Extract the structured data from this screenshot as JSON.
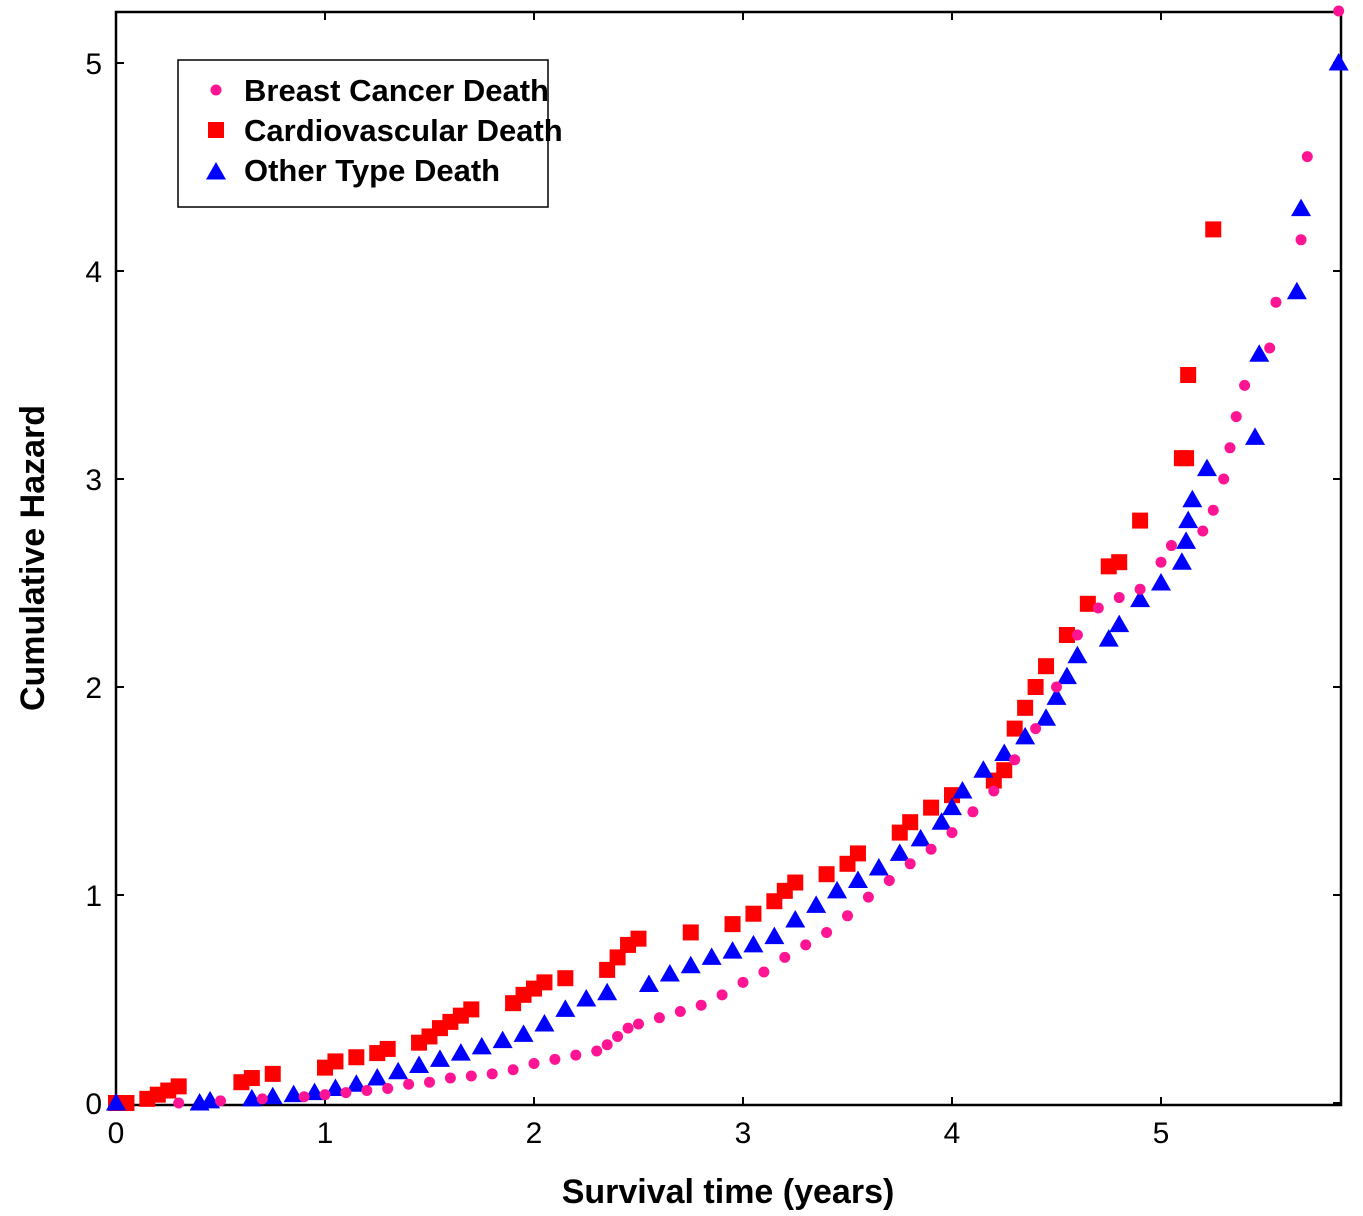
{
  "chart_data": {
    "type": "scatter",
    "title": "",
    "xlabel": "Survival time (years)",
    "ylabel": "Cumulative Hazard",
    "xlim": [
      0,
      5.85
    ],
    "ylim": [
      0,
      5.25
    ],
    "xticks": [
      0,
      1,
      2,
      3,
      4,
      5
    ],
    "yticks": [
      0,
      1,
      2,
      3,
      4,
      5
    ],
    "xtick_labels": [
      "0",
      "1",
      "2",
      "3",
      "4",
      "5"
    ],
    "ytick_labels": [
      "0",
      "1",
      "2",
      "3",
      "4",
      "5"
    ],
    "grid": false,
    "legend_position": "top-left",
    "series": [
      {
        "name": "Breast Cancer Death",
        "marker": "circle",
        "color": "#ff1493",
        "points": [
          [
            0.3,
            0.0
          ],
          [
            0.5,
            0.01
          ],
          [
            0.7,
            0.02
          ],
          [
            0.9,
            0.03
          ],
          [
            1.0,
            0.04
          ],
          [
            1.1,
            0.05
          ],
          [
            1.2,
            0.06
          ],
          [
            1.3,
            0.07
          ],
          [
            1.4,
            0.09
          ],
          [
            1.5,
            0.1
          ],
          [
            1.6,
            0.12
          ],
          [
            1.7,
            0.13
          ],
          [
            1.8,
            0.14
          ],
          [
            1.9,
            0.16
          ],
          [
            2.0,
            0.19
          ],
          [
            2.1,
            0.21
          ],
          [
            2.2,
            0.23
          ],
          [
            2.3,
            0.25
          ],
          [
            2.35,
            0.28
          ],
          [
            2.4,
            0.32
          ],
          [
            2.45,
            0.36
          ],
          [
            2.5,
            0.38
          ],
          [
            2.6,
            0.41
          ],
          [
            2.7,
            0.44
          ],
          [
            2.8,
            0.47
          ],
          [
            2.9,
            0.52
          ],
          [
            3.0,
            0.58
          ],
          [
            3.1,
            0.63
          ],
          [
            3.2,
            0.7
          ],
          [
            3.3,
            0.76
          ],
          [
            3.4,
            0.82
          ],
          [
            3.5,
            0.9
          ],
          [
            3.6,
            0.99
          ],
          [
            3.7,
            1.07
          ],
          [
            3.8,
            1.15
          ],
          [
            3.9,
            1.22
          ],
          [
            4.0,
            1.3
          ],
          [
            4.1,
            1.4
          ],
          [
            4.2,
            1.5
          ],
          [
            4.3,
            1.65
          ],
          [
            4.4,
            1.8
          ],
          [
            4.5,
            2.0
          ],
          [
            4.6,
            2.25
          ],
          [
            4.7,
            2.38
          ],
          [
            4.8,
            2.43
          ],
          [
            4.9,
            2.47
          ],
          [
            5.0,
            2.6
          ],
          [
            5.05,
            2.68
          ],
          [
            5.2,
            2.75
          ],
          [
            5.25,
            2.85
          ],
          [
            5.3,
            3.0
          ],
          [
            5.33,
            3.15
          ],
          [
            5.36,
            3.3
          ],
          [
            5.4,
            3.45
          ],
          [
            5.52,
            3.63
          ],
          [
            5.55,
            3.85
          ],
          [
            5.67,
            4.15
          ],
          [
            5.7,
            4.55
          ],
          [
            5.85,
            5.25
          ]
        ]
      },
      {
        "name": "Cardiovascular Death",
        "marker": "square",
        "color": "#ff0000",
        "points": [
          [
            0.0,
            0.0
          ],
          [
            0.05,
            0.0
          ],
          [
            0.15,
            0.02
          ],
          [
            0.2,
            0.04
          ],
          [
            0.25,
            0.06
          ],
          [
            0.3,
            0.08
          ],
          [
            0.6,
            0.1
          ],
          [
            0.65,
            0.12
          ],
          [
            0.75,
            0.14
          ],
          [
            1.0,
            0.17
          ],
          [
            1.05,
            0.2
          ],
          [
            1.15,
            0.22
          ],
          [
            1.25,
            0.24
          ],
          [
            1.3,
            0.26
          ],
          [
            1.45,
            0.29
          ],
          [
            1.5,
            0.32
          ],
          [
            1.55,
            0.36
          ],
          [
            1.6,
            0.39
          ],
          [
            1.65,
            0.42
          ],
          [
            1.7,
            0.45
          ],
          [
            1.9,
            0.48
          ],
          [
            1.95,
            0.52
          ],
          [
            2.0,
            0.55
          ],
          [
            2.05,
            0.58
          ],
          [
            2.15,
            0.6
          ],
          [
            2.35,
            0.64
          ],
          [
            2.4,
            0.7
          ],
          [
            2.45,
            0.76
          ],
          [
            2.5,
            0.79
          ],
          [
            2.75,
            0.82
          ],
          [
            2.95,
            0.86
          ],
          [
            3.05,
            0.91
          ],
          [
            3.15,
            0.97
          ],
          [
            3.2,
            1.02
          ],
          [
            3.25,
            1.06
          ],
          [
            3.4,
            1.1
          ],
          [
            3.5,
            1.15
          ],
          [
            3.55,
            1.2
          ],
          [
            3.75,
            1.3
          ],
          [
            3.8,
            1.35
          ],
          [
            3.9,
            1.42
          ],
          [
            4.0,
            1.48
          ],
          [
            4.2,
            1.55
          ],
          [
            4.25,
            1.6
          ],
          [
            4.3,
            1.8
          ],
          [
            4.35,
            1.9
          ],
          [
            4.4,
            2.0
          ],
          [
            4.45,
            2.1
          ],
          [
            4.55,
            2.25
          ],
          [
            4.65,
            2.4
          ],
          [
            4.75,
            2.58
          ],
          [
            4.8,
            2.6
          ],
          [
            4.9,
            2.8
          ],
          [
            5.1,
            3.1
          ],
          [
            5.12,
            3.1
          ],
          [
            5.13,
            3.5
          ],
          [
            5.25,
            4.2
          ]
        ]
      },
      {
        "name": "Other Type Death",
        "marker": "triangle",
        "color": "#0000ff",
        "points": [
          [
            0.0,
            0.0
          ],
          [
            0.4,
            0.0
          ],
          [
            0.45,
            0.01
          ],
          [
            0.65,
            0.02
          ],
          [
            0.75,
            0.03
          ],
          [
            0.85,
            0.04
          ],
          [
            0.95,
            0.05
          ],
          [
            1.05,
            0.07
          ],
          [
            1.15,
            0.09
          ],
          [
            1.25,
            0.12
          ],
          [
            1.35,
            0.15
          ],
          [
            1.45,
            0.18
          ],
          [
            1.55,
            0.21
          ],
          [
            1.65,
            0.24
          ],
          [
            1.75,
            0.27
          ],
          [
            1.85,
            0.3
          ],
          [
            1.95,
            0.33
          ],
          [
            2.05,
            0.38
          ],
          [
            2.15,
            0.45
          ],
          [
            2.25,
            0.5
          ],
          [
            2.35,
            0.53
          ],
          [
            2.55,
            0.57
          ],
          [
            2.65,
            0.62
          ],
          [
            2.75,
            0.66
          ],
          [
            2.85,
            0.7
          ],
          [
            2.95,
            0.73
          ],
          [
            3.05,
            0.76
          ],
          [
            3.15,
            0.8
          ],
          [
            3.25,
            0.88
          ],
          [
            3.35,
            0.95
          ],
          [
            3.45,
            1.02
          ],
          [
            3.55,
            1.07
          ],
          [
            3.65,
            1.13
          ],
          [
            3.75,
            1.2
          ],
          [
            3.85,
            1.27
          ],
          [
            3.95,
            1.35
          ],
          [
            4.0,
            1.42
          ],
          [
            4.05,
            1.5
          ],
          [
            4.15,
            1.6
          ],
          [
            4.25,
            1.68
          ],
          [
            4.35,
            1.76
          ],
          [
            4.45,
            1.85
          ],
          [
            4.5,
            1.95
          ],
          [
            4.55,
            2.05
          ],
          [
            4.6,
            2.15
          ],
          [
            4.75,
            2.23
          ],
          [
            4.8,
            2.3
          ],
          [
            4.9,
            2.42
          ],
          [
            5.0,
            2.5
          ],
          [
            5.1,
            2.6
          ],
          [
            5.12,
            2.7
          ],
          [
            5.13,
            2.8
          ],
          [
            5.15,
            2.9
          ],
          [
            5.22,
            3.05
          ],
          [
            5.45,
            3.2
          ],
          [
            5.47,
            3.6
          ],
          [
            5.65,
            3.9
          ],
          [
            5.67,
            4.3
          ],
          [
            5.85,
            5.0
          ]
        ]
      }
    ]
  }
}
